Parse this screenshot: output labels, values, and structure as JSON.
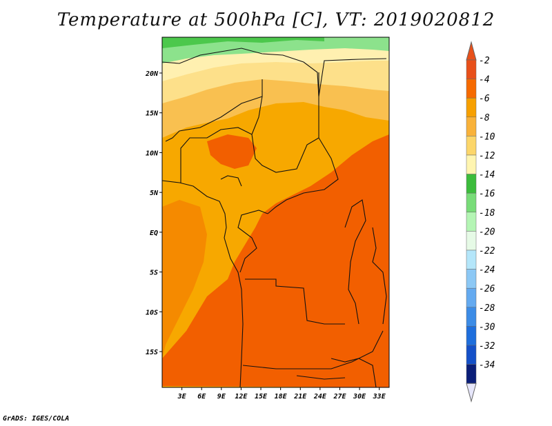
{
  "title": "Temperature at 500hPa [C], VT: 2019020812",
  "credit": "GrADS: IGES/COLA",
  "map": {
    "lat_range": [
      -19.5,
      24.5
    ],
    "lon_range": [
      0,
      34.5
    ],
    "lat_ticks": [
      {
        "value": 20,
        "label": "20N"
      },
      {
        "value": 15,
        "label": "15N"
      },
      {
        "value": 10,
        "label": "10N"
      },
      {
        "value": 5,
        "label": "5N"
      },
      {
        "value": 0,
        "label": "EQ"
      },
      {
        "value": -5,
        "label": "5S"
      },
      {
        "value": -10,
        "label": "10S"
      },
      {
        "value": -15,
        "label": "15S"
      }
    ],
    "lon_ticks": [
      {
        "value": 3,
        "label": "3E"
      },
      {
        "value": 6,
        "label": "6E"
      },
      {
        "value": 9,
        "label": "9E"
      },
      {
        "value": 12,
        "label": "12E"
      },
      {
        "value": 15,
        "label": "15E"
      },
      {
        "value": 18,
        "label": "18E"
      },
      {
        "value": 21,
        "label": "21E"
      },
      {
        "value": 24,
        "label": "24E"
      },
      {
        "value": 27,
        "label": "27E"
      },
      {
        "value": 30,
        "label": "30E"
      },
      {
        "value": 33,
        "label": "33E"
      }
    ]
  },
  "colorbar": {
    "levels": [
      {
        "label": "-2",
        "color": "#e8501a"
      },
      {
        "label": "-4",
        "color": "#f66a00"
      },
      {
        "label": "-6",
        "color": "#f7a000"
      },
      {
        "label": "-8",
        "color": "#f9b23a"
      },
      {
        "label": "-10",
        "color": "#fcd66a"
      },
      {
        "label": "-12",
        "color": "#fff5b0"
      },
      {
        "label": "-14",
        "color": "#3cbc3c"
      },
      {
        "label": "-16",
        "color": "#78dc78"
      },
      {
        "label": "-18",
        "color": "#b4f5b4"
      },
      {
        "label": "-20",
        "color": "#e6fae6"
      },
      {
        "label": "-22",
        "color": "#b4e6fa"
      },
      {
        "label": "-24",
        "color": "#8cc8f5"
      },
      {
        "label": "-26",
        "color": "#64aaf0"
      },
      {
        "label": "-28",
        "color": "#3c8ce6"
      },
      {
        "label": "-30",
        "color": "#1e6edc"
      },
      {
        "label": "-32",
        "color": "#1450c8"
      },
      {
        "label": "-34",
        "color": "#0a1e78"
      }
    ],
    "top_triangle_color": "#e8501a",
    "bottom_triangle_color": "#e6e6fa"
  },
  "fields": {
    "warmest_color": "#f25f00",
    "warm_color": "#f58a00",
    "mid_color": "#f7a800",
    "cool_color": "#f9c050",
    "cold_color": "#fde08a",
    "colder_color": "#fff0b0",
    "green_color": "#8ce28c",
    "green_dark_color": "#4cc84c"
  }
}
